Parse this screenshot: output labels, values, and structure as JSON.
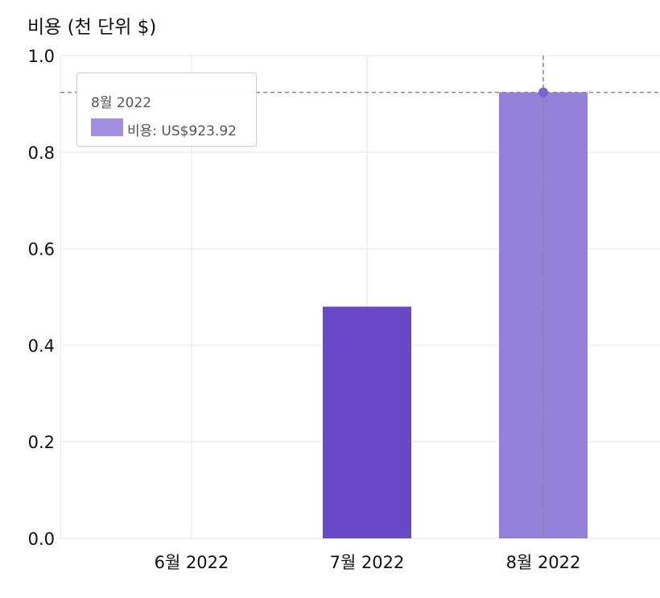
{
  "chart_data": {
    "type": "bar",
    "ylabel": "비용 (천 단위 $)",
    "categories": [
      "6월 2022",
      "7월 2022",
      "8월 2022"
    ],
    "series": [
      {
        "values": [
          0,
          0.48,
          0.92392
        ]
      }
    ],
    "ylim": [
      0,
      1.0
    ],
    "yticks": [
      "0.0",
      "0.2",
      "0.4",
      "0.6",
      "0.8",
      "1.0"
    ],
    "ytick_values": [
      0,
      0.2,
      0.4,
      0.6,
      0.8,
      1.0
    ],
    "grid": true,
    "highlight_index": 2,
    "colors": {
      "bar": "#6849c8",
      "bar_highlight": "#9380d9",
      "marker": "#7b61d1",
      "swatch": "#a28fe3",
      "grid": "#eeeeee",
      "crosshair": "#8a8a8a",
      "tick_text": "#111111"
    },
    "tooltip": {
      "title": "8월 2022",
      "row_label": "비용: US$923.92"
    }
  }
}
